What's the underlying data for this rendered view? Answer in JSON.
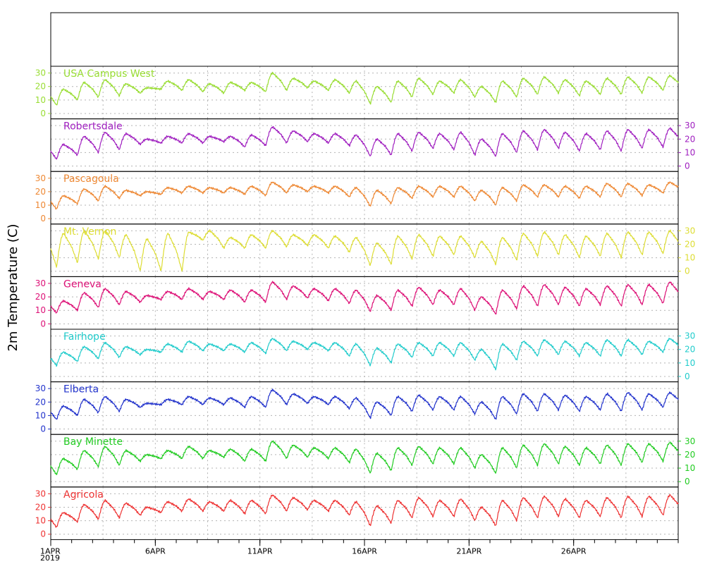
{
  "chart_data": {
    "type": "line",
    "ylabel": "2m Temperature (C)",
    "ylim": [
      -4,
      35
    ],
    "yticks": [
      0,
      10,
      20,
      30
    ],
    "x_start_label": "1APR",
    "x_year_label": "2019",
    "x_range_days": [
      0,
      30
    ],
    "xticks": [
      {
        "day": 0,
        "label": "1APR"
      },
      {
        "day": 5,
        "label": "6APR"
      },
      {
        "day": 10,
        "label": "11APR"
      },
      {
        "day": 15,
        "label": "16APR"
      },
      {
        "day": 20,
        "label": "21APR"
      },
      {
        "day": 25,
        "label": "26APR"
      }
    ],
    "grid": true,
    "daily_minmax_note_hidden": false,
    "series": [
      {
        "name": "USA Campus West",
        "color": "#99dd33",
        "axis_side": "left",
        "daily_min": [
          6,
          10,
          12,
          13,
          15,
          18,
          17,
          16,
          15,
          17,
          16,
          17,
          19,
          17,
          15,
          7,
          8,
          12,
          14,
          15,
          12,
          8,
          12,
          14,
          15,
          13,
          14,
          14,
          15,
          17
        ],
        "daily_max": [
          18,
          23,
          25,
          22,
          19,
          24,
          25,
          22,
          23,
          23,
          30,
          26,
          24,
          25,
          24,
          20,
          24,
          26,
          24,
          25,
          20,
          24,
          26,
          27,
          25,
          24,
          26,
          27,
          27,
          28
        ]
      },
      {
        "name": "Robertsdale",
        "color": "#a020c0",
        "axis_side": "right",
        "daily_min": [
          5,
          8,
          10,
          12,
          16,
          17,
          17,
          17,
          18,
          14,
          15,
          17,
          18,
          17,
          15,
          7,
          8,
          11,
          13,
          12,
          8,
          7,
          10,
          12,
          13,
          11,
          12,
          11,
          13,
          14
        ],
        "daily_max": [
          16,
          22,
          25,
          24,
          20,
          22,
          24,
          22,
          22,
          23,
          29,
          26,
          24,
          24,
          23,
          20,
          24,
          25,
          24,
          25,
          20,
          24,
          26,
          27,
          25,
          24,
          26,
          27,
          27,
          28
        ]
      },
      {
        "name": "Pascagoula",
        "color": "#ee8833",
        "axis_side": "left",
        "daily_min": [
          7,
          11,
          13,
          15,
          17,
          18,
          19,
          19,
          19,
          18,
          17,
          19,
          20,
          19,
          16,
          9,
          11,
          15,
          16,
          16,
          13,
          10,
          13,
          16,
          16,
          15,
          16,
          16,
          17,
          19
        ],
        "daily_max": [
          17,
          22,
          24,
          21,
          20,
          23,
          24,
          23,
          23,
          24,
          27,
          25,
          24,
          24,
          23,
          21,
          23,
          24,
          24,
          24,
          21,
          23,
          25,
          25,
          24,
          24,
          26,
          26,
          25,
          27
        ]
      },
      {
        "name": "Mt. Vernon",
        "color": "#dddd33",
        "axis_side": "right",
        "daily_min": [
          3,
          6,
          9,
          10,
          0,
          0,
          0,
          23,
          17,
          17,
          17,
          18,
          19,
          17,
          14,
          4,
          5,
          9,
          11,
          12,
          10,
          5,
          8,
          11,
          12,
          10,
          11,
          10,
          12,
          13
        ],
        "daily_max": [
          28,
          30,
          30,
          27,
          24,
          28,
          29,
          30,
          25,
          27,
          30,
          27,
          27,
          26,
          25,
          21,
          26,
          27,
          26,
          26,
          22,
          25,
          28,
          29,
          27,
          26,
          28,
          29,
          29,
          30
        ]
      },
      {
        "name": "Geneva",
        "color": "#dd1177",
        "axis_side": "left",
        "daily_min": [
          8,
          10,
          12,
          14,
          16,
          18,
          18,
          18,
          18,
          16,
          16,
          18,
          19,
          17,
          15,
          9,
          10,
          13,
          14,
          14,
          10,
          7,
          11,
          13,
          14,
          13,
          14,
          13,
          14,
          15
        ],
        "daily_max": [
          17,
          23,
          26,
          24,
          21,
          24,
          26,
          24,
          25,
          25,
          31,
          28,
          26,
          26,
          25,
          21,
          25,
          27,
          25,
          26,
          20,
          25,
          28,
          29,
          27,
          26,
          28,
          29,
          29,
          31
        ]
      },
      {
        "name": "Fairhope",
        "color": "#22cccc",
        "axis_side": "right",
        "daily_min": [
          8,
          11,
          13,
          14,
          16,
          18,
          18,
          19,
          19,
          18,
          17,
          19,
          20,
          19,
          15,
          8,
          10,
          14,
          15,
          15,
          12,
          5,
          12,
          15,
          16,
          15,
          15,
          15,
          16,
          18
        ],
        "daily_max": [
          18,
          22,
          25,
          22,
          20,
          24,
          26,
          24,
          24,
          25,
          28,
          26,
          25,
          25,
          24,
          21,
          24,
          25,
          25,
          25,
          20,
          24,
          26,
          27,
          26,
          25,
          27,
          27,
          26,
          28
        ]
      },
      {
        "name": "Elberta",
        "color": "#2233cc",
        "axis_side": "left",
        "daily_min": [
          7,
          10,
          12,
          13,
          16,
          18,
          18,
          18,
          18,
          16,
          16,
          18,
          19,
          18,
          15,
          8,
          10,
          13,
          14,
          14,
          11,
          7,
          11,
          13,
          14,
          13,
          14,
          13,
          14,
          16
        ],
        "daily_max": [
          17,
          22,
          24,
          22,
          19,
          22,
          24,
          23,
          23,
          24,
          29,
          26,
          24,
          24,
          23,
          20,
          24,
          25,
          24,
          24,
          20,
          24,
          26,
          26,
          25,
          24,
          26,
          27,
          26,
          27
        ]
      },
      {
        "name": "Bay Minette",
        "color": "#22cc22",
        "axis_side": "right",
        "daily_min": [
          5,
          9,
          11,
          12,
          15,
          17,
          17,
          17,
          18,
          15,
          15,
          17,
          18,
          17,
          14,
          6,
          8,
          12,
          13,
          13,
          10,
          6,
          10,
          12,
          13,
          12,
          13,
          12,
          14,
          15
        ],
        "daily_max": [
          17,
          23,
          26,
          23,
          20,
          23,
          26,
          23,
          24,
          24,
          30,
          27,
          25,
          25,
          24,
          21,
          25,
          26,
          25,
          25,
          20,
          25,
          27,
          28,
          26,
          25,
          27,
          28,
          28,
          29
        ]
      },
      {
        "name": "Agricola",
        "color": "#ee3333",
        "axis_side": "left",
        "daily_min": [
          5,
          9,
          11,
          12,
          14,
          16,
          17,
          17,
          17,
          15,
          15,
          17,
          18,
          17,
          14,
          6,
          8,
          12,
          13,
          13,
          10,
          6,
          10,
          12,
          13,
          12,
          13,
          12,
          13,
          14
        ],
        "daily_max": [
          16,
          22,
          25,
          23,
          20,
          24,
          26,
          24,
          25,
          25,
          29,
          27,
          25,
          25,
          24,
          21,
          25,
          27,
          25,
          26,
          20,
          25,
          27,
          28,
          26,
          25,
          27,
          28,
          28,
          29
        ]
      }
    ]
  }
}
